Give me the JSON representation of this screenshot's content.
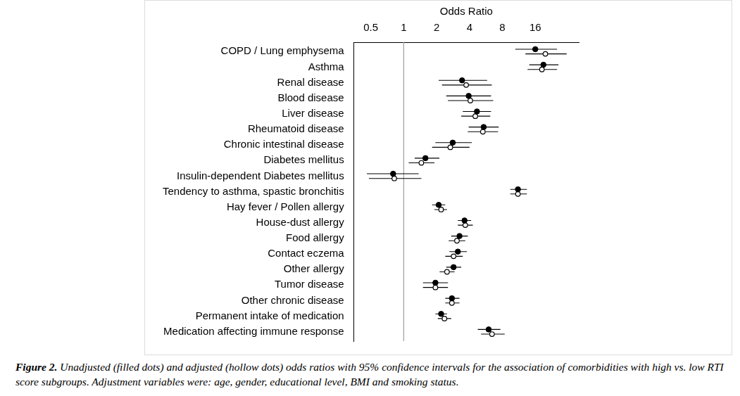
{
  "chart_data": {
    "type": "forest",
    "xlabel": "Odds Ratio",
    "log": "x",
    "grid": false,
    "xlim": [
      0.35,
      40
    ],
    "xticks": [
      0.5,
      1,
      2,
      4,
      8,
      16
    ],
    "reference_line": 1,
    "categories": [
      "COPD / Lung emphysema",
      "Asthma",
      "Renal disease",
      "Blood disease",
      "Liver disease",
      "Rheumatoid disease",
      "Chronic intestinal disease",
      "Diabetes mellitus",
      "Insulin-dependent Diabetes mellitus",
      "Tendency to asthma, spastic bronchitis",
      "Hay fever / Pollen allergy",
      "House-dust allergy",
      "Food allergy",
      "Contact eczema",
      "Other allergy",
      "Tumor disease",
      "Other chronic disease",
      "Permanent intake of medication",
      "Medication affecting immune response"
    ],
    "series": [
      {
        "marker": "circle",
        "color": "#000000",
        "values": [
          16,
          19.0,
          3.42,
          3.93,
          4.68,
          5.39,
          2.81,
          1.58,
          0.8,
          11.1,
          2.09,
          3.6,
          3.24,
          3.13,
          2.86,
          1.95,
          2.76,
          2.2,
          5.99
        ],
        "ci_low": [
          10.5,
          14.1,
          2.09,
          2.45,
          3.47,
          3.93,
          1.95,
          1.26,
          0.46,
          9.45,
          1.82,
          3.13,
          2.72,
          2.62,
          2.45,
          1.5,
          2.4,
          1.95,
          4.76
        ],
        "ci_high": [
          25.3,
          26.1,
          5.8,
          6.3,
          6.3,
          7.4,
          4.2,
          2.12,
          1.37,
          13.4,
          2.4,
          4.14,
          3.86,
          3.79,
          3.36,
          2.54,
          3.24,
          2.49,
          7.67
        ]
      },
      {
        "marker": "open_circle",
        "color": "#000000",
        "values": [
          19.8,
          18.4,
          3.73,
          4.07,
          4.52,
          5.3,
          2.67,
          1.45,
          0.82,
          11.1,
          2.2,
          3.66,
          3.07,
          2.86,
          2.49,
          1.95,
          2.76,
          2.36,
          6.43
        ],
        "ci_low": [
          13,
          13.6,
          2.24,
          2.54,
          3.36,
          3.86,
          1.82,
          1.11,
          0.48,
          9.45,
          1.91,
          3.13,
          2.58,
          2.4,
          2.13,
          1.5,
          2.4,
          2.05,
          5.1
        ],
        "ci_high": [
          31,
          25.3,
          6.4,
          6.6,
          6.2,
          7.3,
          4.0,
          1.91,
          1.45,
          13.4,
          2.49,
          4.29,
          3.66,
          3.47,
          2.92,
          2.54,
          3.24,
          2.72,
          8.4
        ]
      }
    ],
    "caption": {
      "label": "Figure 2.",
      "text": "Unadjusted (filled dots) and adjusted (hollow dots) odds ratios with 95% confidence intervals for the association of comorbidities with high vs. low RTI score subgroups. Adjustment variables were: age, gender, educational level, BMI and smoking status."
    }
  }
}
